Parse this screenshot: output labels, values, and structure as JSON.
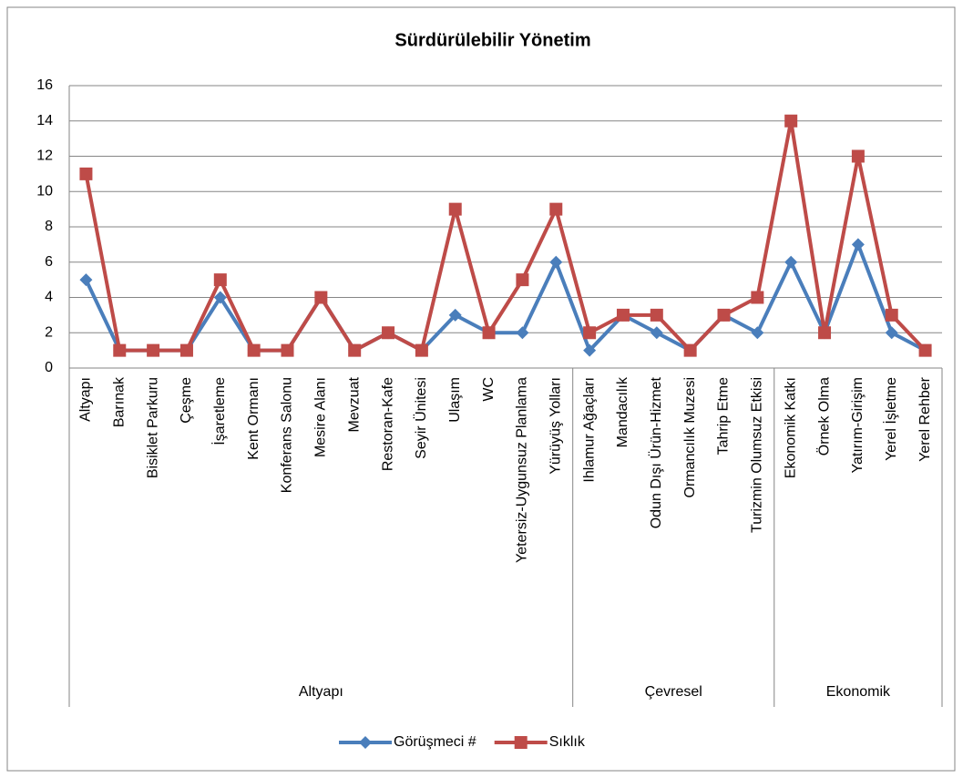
{
  "chart_data": {
    "type": "line",
    "title": "Sürdürülebilir Yönetim",
    "categories": [
      "Altyapı",
      "Barınak",
      "Bisiklet Parkuru",
      "Çeşme",
      "İşaretleme",
      "Kent Ormanı",
      "Konferans Salonu",
      "Mesire Alanı",
      "Mevzuat",
      "Restoran-Kafe",
      "Seyir Ünitesi",
      "Ulaşım",
      "WC",
      "Yetersiz-Uygunsuz Planlama",
      "Yürüyüş Yolları",
      "Ihlamur Ağaçları",
      "Mandacılık",
      "Odun Dışı Ürün-Hizmet",
      "Ormancılık Muzesi",
      "Tahrip Etme",
      "Turizmin Olumsuz Etkisi",
      "Ekonomik Katkı",
      "Örnek Olma",
      "Yatırım-Girişim",
      "Yerel İşletme",
      "Yerel Rehber"
    ],
    "groups": [
      {
        "label": "Altyapı",
        "span": 15
      },
      {
        "label": "Çevresel",
        "span": 6
      },
      {
        "label": "Ekonomik",
        "span": 5
      }
    ],
    "series": [
      {
        "name": "Görüşmeci #",
        "color": "#4a7ebb",
        "marker": "diamond",
        "values": [
          5,
          1,
          1,
          1,
          4,
          1,
          1,
          4,
          1,
          2,
          1,
          3,
          2,
          2,
          6,
          1,
          3,
          2,
          1,
          3,
          2,
          6,
          2,
          7,
          2,
          1
        ]
      },
      {
        "name": "Sıklık",
        "color": "#be4b48",
        "marker": "square",
        "values": [
          11,
          1,
          1,
          1,
          5,
          1,
          1,
          4,
          1,
          2,
          1,
          9,
          2,
          5,
          9,
          2,
          3,
          3,
          1,
          3,
          4,
          14,
          2,
          12,
          3,
          1
        ]
      }
    ],
    "ylim": [
      0,
      16
    ],
    "yticks": [
      0,
      2,
      4,
      6,
      8,
      10,
      12,
      14,
      16
    ],
    "grid": true,
    "legend": "bottom"
  }
}
